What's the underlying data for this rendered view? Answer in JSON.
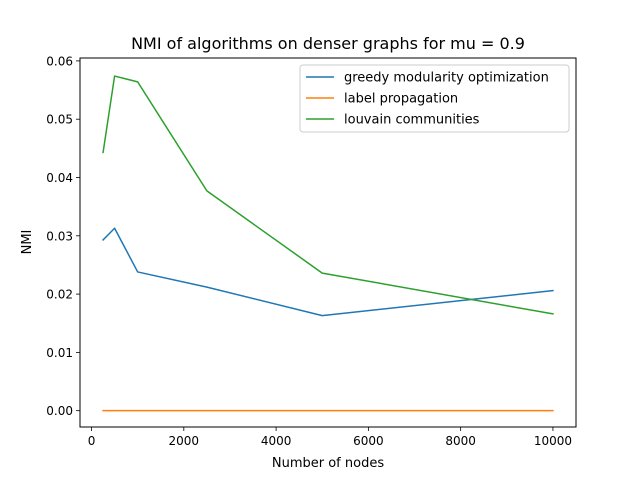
{
  "chart_data": {
    "type": "line",
    "title": "NMI of algorithms on denser graphs for mu = 0.9",
    "xlabel": "Number of nodes",
    "ylabel": "NMI",
    "xlim": [
      -250,
      10500
    ],
    "ylim": [
      -0.0028,
      0.0605
    ],
    "xticks": [
      0,
      2000,
      4000,
      6000,
      8000,
      10000
    ],
    "xtick_labels": [
      "0",
      "2000",
      "4000",
      "6000",
      "8000",
      "10000"
    ],
    "yticks": [
      0.0,
      0.01,
      0.02,
      0.03,
      0.04,
      0.05,
      0.06
    ],
    "ytick_labels": [
      "0.00",
      "0.01",
      "0.02",
      "0.03",
      "0.04",
      "0.05",
      "0.06"
    ],
    "grid": false,
    "legend_position": "top-right",
    "x": [
      250,
      500,
      1000,
      2500,
      5000,
      10000
    ],
    "series": [
      {
        "name": "greedy modularity optimization",
        "color": "#1f77b4",
        "values": [
          0.0293,
          0.0313,
          0.0238,
          0.0212,
          0.0163,
          0.0206
        ]
      },
      {
        "name": "label propagation",
        "color": "#ff7f0e",
        "values": [
          0.0,
          0.0,
          0.0,
          0.0,
          0.0,
          0.0
        ]
      },
      {
        "name": "louvain communities",
        "color": "#2ca02c",
        "values": [
          0.0443,
          0.0574,
          0.0564,
          0.0377,
          0.0236,
          0.0166
        ]
      }
    ]
  }
}
